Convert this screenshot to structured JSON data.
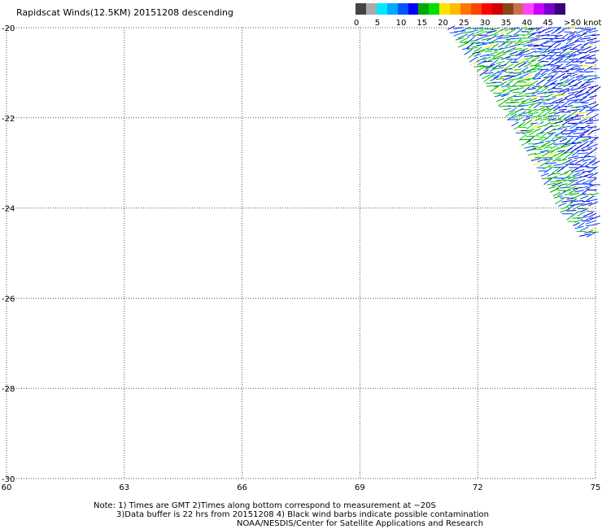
{
  "title": "Rapidscat Winds(12.5KM) 20151208 descending",
  "legend": {
    "colors": [
      "#444444",
      "#aaaaaa",
      "#00e8ff",
      "#00a8ff",
      "#0055ff",
      "#0000ff",
      "#00aa00",
      "#00dd00",
      "#ffe400",
      "#ffbb00",
      "#ff7700",
      "#ff4400",
      "#ff0000",
      "#cc0000",
      "#8b4513",
      "#c87050",
      "#ff44ff",
      "#cc00ff",
      "#7700cc",
      "#330077"
    ],
    "labels": [
      "0",
      "5",
      "10",
      "15",
      "20",
      "25",
      "30",
      "35",
      "40",
      "45",
      ">50 knots"
    ]
  },
  "axes": {
    "lon_ticks": [
      "60",
      "63",
      "66",
      "69",
      "72",
      "75"
    ],
    "lat_ticks": [
      "-20",
      "-22",
      "-24",
      "-26",
      "-28",
      "-30"
    ],
    "lon_range": [
      60,
      75
    ],
    "lat_range": [
      -20,
      -30
    ]
  },
  "notes": [
    "Note: 1) Times are GMT 2)Times along bottom correspond to measurement at −20S",
    "3)Data buffer is 22 hrs from 20151208 4) Black wind barbs indicate possible contamination",
    "NOAA/NESDIS/Center for Satellite Applications and Research"
  ],
  "swath": {
    "west_edge": [
      [
        71.3,
        -20.0
      ],
      [
        72.5,
        -21.5
      ],
      [
        73.5,
        -23.0
      ],
      [
        74.3,
        -24.2
      ],
      [
        74.7,
        -24.6
      ]
    ],
    "east_lon": 75.0,
    "south_lat": -24.6,
    "barb_colors": [
      "#00aa00",
      "#00cc00",
      "#0033ff",
      "#0000cc",
      "#0055ff",
      "#ffe400"
    ]
  }
}
